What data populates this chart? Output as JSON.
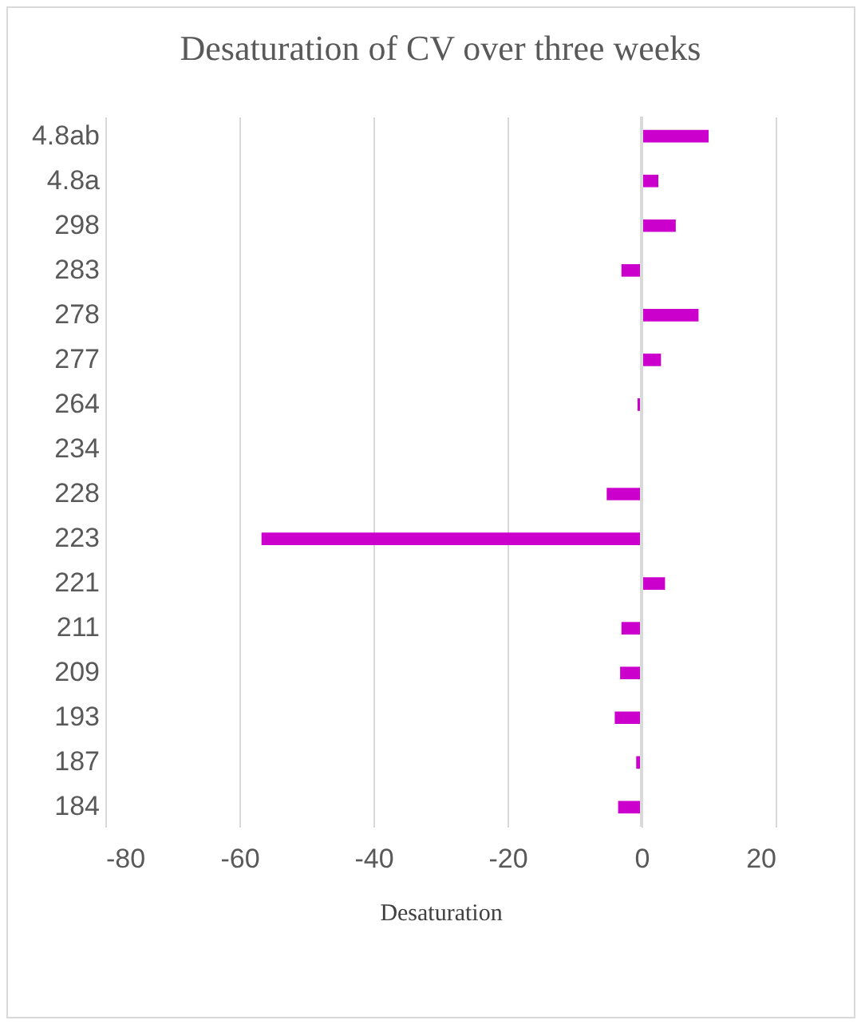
{
  "chart_data": {
    "type": "bar",
    "orientation": "horizontal",
    "title": "Desaturation of CV over three weeks",
    "xlabel": "Desaturation",
    "categories": [
      "4.8ab",
      "4.8a",
      "298",
      "283",
      "278",
      "277",
      "264",
      "234",
      "228",
      "223",
      "221",
      "211",
      "209",
      "193",
      "187",
      "184"
    ],
    "values": [
      10.0,
      2.5,
      5.1,
      -3.0,
      8.5,
      2.9,
      -0.6,
      0,
      -5.2,
      -56.7,
      3.5,
      -3.0,
      -3.2,
      -4.0,
      -0.8,
      -3.5
    ],
    "color": "#cc00cc",
    "xlim": [
      -80,
      20
    ],
    "xticks": [
      -80,
      -60,
      -40,
      -20,
      0,
      20
    ],
    "grid": "x"
  }
}
